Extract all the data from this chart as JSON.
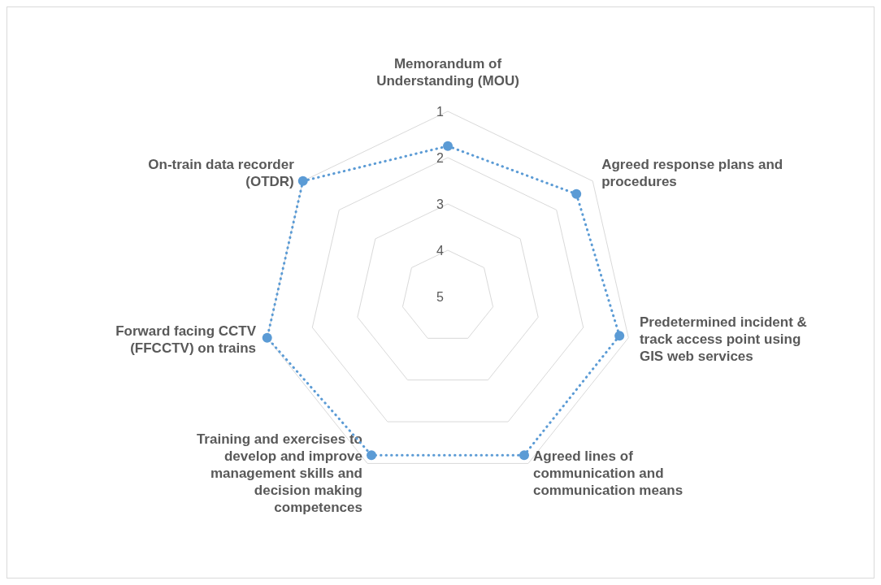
{
  "chart_data": {
    "type": "radar",
    "categories": [
      "Memorandum of Understanding (MOU)",
      "Agreed response plans and procedures",
      "Predetermined incident & track access point using GIS web services",
      "Agreed lines of communication and communication means",
      "Training and exercises to develop and improve management skills and decision making competences",
      "Forward facing CCTV (FFCCTV) on trains",
      "On-train data recorder (OTDR)"
    ],
    "series": [
      {
        "color": "#5b9bd5",
        "values": [
          1.75,
          1.45,
          1.2,
          1.2,
          1.2,
          1.0,
          1.0
        ]
      }
    ],
    "ylim": [
      5,
      1
    ],
    "yticks": [
      1,
      2,
      3,
      4,
      5
    ],
    "grid": true,
    "marker": "circle",
    "line_style": "dotted"
  }
}
